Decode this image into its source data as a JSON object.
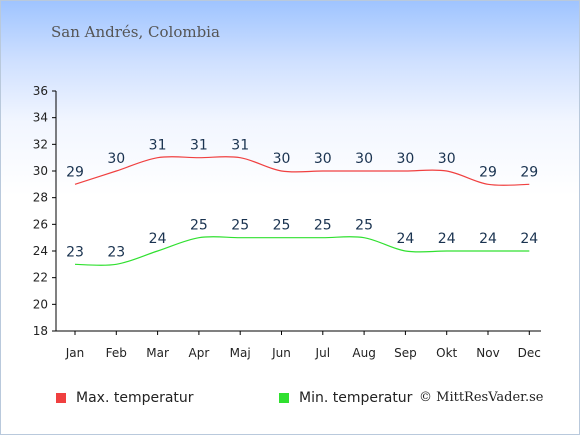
{
  "title": "San Andrés, Colombia",
  "credit": "© MittResVader.se",
  "colors": {
    "max": "#f04040",
    "min": "#30e030",
    "label": "#1a3350",
    "axis": "#000000"
  },
  "chart_data": {
    "type": "line",
    "categories": [
      "Jan",
      "Feb",
      "Mar",
      "Apr",
      "Maj",
      "Jun",
      "Jul",
      "Aug",
      "Sep",
      "Okt",
      "Nov",
      "Dec"
    ],
    "ylim": [
      18,
      36
    ],
    "yticks": [
      18,
      20,
      22,
      24,
      26,
      28,
      30,
      32,
      34,
      36
    ],
    "grid": false,
    "legend_position": "bottom",
    "series": [
      {
        "name": "Max. temperatur",
        "values": [
          29,
          30,
          31,
          31,
          31,
          30,
          30,
          30,
          30,
          30,
          29,
          29
        ]
      },
      {
        "name": "Min. temperatur",
        "values": [
          23,
          23,
          24,
          25,
          25,
          25,
          25,
          25,
          24,
          24,
          24,
          24
        ]
      }
    ]
  }
}
